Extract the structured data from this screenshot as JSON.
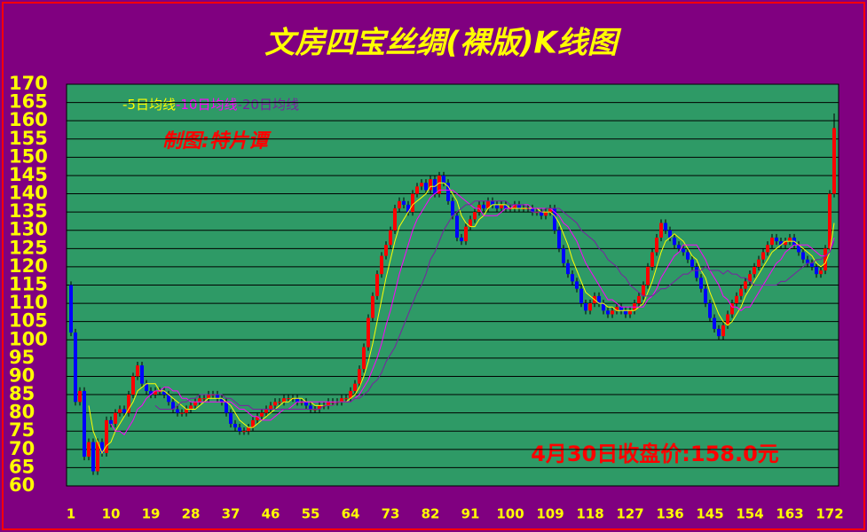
{
  "chart_data": {
    "type": "candlestick",
    "title": "文房四宝丝绸(裸版)K线图",
    "annotations": [
      "制图:特片谭",
      "4月30日收盘价:158.0元"
    ],
    "up_color": "#ff0000",
    "down_color": "#0000ff",
    "x": [
      1,
      2,
      3,
      4,
      5,
      6,
      7,
      8,
      9,
      10,
      11,
      12,
      13,
      14,
      15,
      16,
      17,
      18,
      19,
      20,
      21,
      22,
      23,
      24,
      25,
      26,
      27,
      28,
      29,
      30,
      31,
      32,
      33,
      34,
      35,
      36,
      37,
      38,
      39,
      40,
      41,
      42,
      43,
      44,
      45,
      46,
      47,
      48,
      49,
      50,
      51,
      52,
      53,
      54,
      55,
      56,
      57,
      58,
      59,
      60,
      61,
      62,
      63,
      64,
      65,
      66,
      67,
      68,
      69,
      70,
      71,
      72,
      73,
      74,
      75,
      76,
      77,
      78,
      79,
      80,
      81,
      82,
      83,
      84,
      85,
      86,
      87,
      88,
      89,
      90,
      91,
      92,
      93,
      94,
      95,
      96,
      97,
      98,
      99,
      100,
      101,
      102,
      103,
      104,
      105,
      106,
      107,
      108,
      109,
      110,
      111,
      112,
      113,
      114,
      115,
      116,
      117,
      118,
      119,
      120,
      121,
      122,
      123,
      124,
      125,
      126,
      127,
      128,
      129,
      130,
      131,
      132,
      133,
      134,
      135,
      136,
      137,
      138,
      139,
      140,
      141,
      142,
      143,
      144,
      145,
      146,
      147,
      148,
      149,
      150,
      151,
      152,
      153,
      154,
      155,
      156,
      157,
      158,
      159,
      160,
      161,
      162,
      163,
      164,
      165,
      166,
      167,
      168,
      169,
      170,
      171,
      172,
      173
    ],
    "open": [
      115,
      102,
      83,
      86,
      68,
      72,
      64,
      72,
      69,
      78,
      77,
      80,
      81,
      80,
      85,
      90,
      93,
      88,
      86,
      85,
      86,
      86,
      85,
      83,
      81,
      80,
      80,
      81,
      82,
      83,
      84,
      84,
      85,
      85,
      84,
      83,
      80,
      77,
      76,
      75,
      75,
      76,
      78,
      79,
      80,
      81,
      82,
      83,
      83,
      84,
      84,
      84,
      83,
      83,
      82,
      81,
      81,
      82,
      82,
      83,
      83,
      83,
      84,
      84,
      86,
      88,
      92,
      98,
      106,
      112,
      118,
      123,
      126,
      130,
      136,
      138,
      137,
      135,
      140,
      142,
      143,
      141,
      144,
      140,
      145,
      143,
      138,
      134,
      128,
      127,
      131,
      133,
      135,
      137,
      136,
      138,
      137,
      136,
      137,
      136,
      136,
      137,
      136,
      136,
      136,
      135,
      135,
      134,
      135,
      136,
      130,
      125,
      121,
      118,
      116,
      114,
      110,
      108,
      110,
      112,
      110,
      108,
      107,
      108,
      109,
      108,
      107,
      108,
      110,
      112,
      115,
      120,
      124,
      128,
      132,
      130,
      128,
      126,
      125,
      124,
      122,
      120,
      117,
      114,
      110,
      106,
      103,
      101,
      104,
      107,
      110,
      112,
      114,
      116,
      118,
      120,
      122,
      124,
      126,
      128,
      127,
      126,
      127,
      128,
      126,
      124,
      122,
      121,
      120,
      118,
      119,
      125,
      140
    ],
    "high": [
      116,
      103,
      87,
      87,
      73,
      73,
      73,
      73,
      79,
      79,
      81,
      82,
      82,
      86,
      91,
      94,
      94,
      89,
      87,
      87,
      87,
      87,
      86,
      84,
      82,
      81,
      82,
      83,
      84,
      85,
      85,
      86,
      86,
      86,
      85,
      84,
      81,
      78,
      77,
      76,
      77,
      79,
      80,
      81,
      82,
      83,
      84,
      84,
      85,
      85,
      85,
      85,
      84,
      84,
      83,
      82,
      83,
      83,
      84,
      84,
      84,
      85,
      85,
      87,
      89,
      93,
      99,
      107,
      113,
      119,
      124,
      127,
      131,
      137,
      139,
      139,
      138,
      141,
      143,
      144,
      144,
      145,
      145,
      146,
      146,
      144,
      139,
      135,
      129,
      132,
      134,
      136,
      138,
      138,
      139,
      139,
      138,
      138,
      138,
      137,
      138,
      138,
      137,
      137,
      137,
      136,
      136,
      136,
      137,
      137,
      131,
      126,
      122,
      119,
      117,
      115,
      111,
      111,
      113,
      113,
      111,
      109,
      109,
      110,
      110,
      109,
      109,
      111,
      113,
      116,
      121,
      125,
      129,
      133,
      133,
      131,
      129,
      127,
      126,
      125,
      123,
      121,
      118,
      115,
      111,
      107,
      104,
      105,
      108,
      111,
      113,
      115,
      117,
      119,
      121,
      123,
      125,
      127,
      129,
      129,
      128,
      128,
      129,
      129,
      127,
      125,
      123,
      122,
      121,
      120,
      126,
      141,
      162
    ],
    "low": [
      101,
      82,
      82,
      67,
      67,
      63,
      63,
      68,
      68,
      76,
      76,
      79,
      79,
      79,
      84,
      89,
      87,
      85,
      84,
      84,
      85,
      84,
      82,
      80,
      79,
      79,
      79,
      80,
      81,
      82,
      83,
      83,
      84,
      83,
      82,
      79,
      76,
      75,
      74,
      74,
      74,
      75,
      77,
      78,
      79,
      80,
      81,
      82,
      82,
      83,
      83,
      82,
      82,
      81,
      80,
      80,
      80,
      81,
      81,
      82,
      82,
      82,
      83,
      83,
      85,
      87,
      91,
      97,
      105,
      111,
      117,
      122,
      125,
      129,
      135,
      136,
      134,
      134,
      139,
      141,
      140,
      140,
      139,
      139,
      142,
      137,
      133,
      127,
      126,
      126,
      130,
      132,
      134,
      135,
      135,
      136,
      135,
      135,
      135,
      135,
      135,
      135,
      135,
      135,
      134,
      134,
      133,
      133,
      134,
      129,
      124,
      120,
      117,
      115,
      113,
      109,
      107,
      107,
      109,
      109,
      107,
      106,
      106,
      107,
      107,
      106,
      106,
      107,
      109,
      111,
      114,
      119,
      123,
      127,
      129,
      127,
      125,
      124,
      123,
      121,
      119,
      116,
      113,
      109,
      105,
      102,
      100,
      100,
      103,
      106,
      109,
      111,
      113,
      115,
      117,
      119,
      121,
      123,
      125,
      126,
      125,
      125,
      126,
      125,
      123,
      121,
      120,
      119,
      117,
      117,
      118,
      124,
      139
    ],
    "close": [
      102,
      83,
      86,
      68,
      72,
      64,
      72,
      69,
      78,
      77,
      80,
      81,
      80,
      85,
      90,
      93,
      88,
      86,
      85,
      86,
      86,
      85,
      83,
      81,
      80,
      80,
      81,
      82,
      83,
      84,
      84,
      85,
      85,
      84,
      83,
      80,
      77,
      76,
      75,
      75,
      76,
      78,
      79,
      80,
      81,
      82,
      83,
      83,
      84,
      84,
      84,
      83,
      83,
      82,
      81,
      81,
      82,
      82,
      83,
      83,
      83,
      84,
      84,
      86,
      88,
      92,
      98,
      106,
      112,
      118,
      123,
      126,
      130,
      136,
      138,
      137,
      135,
      140,
      142,
      143,
      141,
      144,
      140,
      145,
      143,
      138,
      134,
      128,
      127,
      131,
      133,
      135,
      137,
      136,
      138,
      137,
      136,
      137,
      136,
      136,
      137,
      136,
      136,
      136,
      135,
      135,
      134,
      135,
      136,
      130,
      125,
      121,
      118,
      116,
      114,
      110,
      108,
      110,
      112,
      110,
      108,
      107,
      108,
      109,
      108,
      107,
      108,
      110,
      112,
      115,
      120,
      124,
      128,
      132,
      130,
      128,
      126,
      125,
      124,
      122,
      120,
      117,
      114,
      110,
      106,
      103,
      101,
      104,
      107,
      110,
      112,
      114,
      116,
      118,
      120,
      122,
      124,
      126,
      128,
      127,
      126,
      127,
      128,
      126,
      124,
      122,
      121,
      120,
      118,
      119,
      125,
      140,
      158
    ],
    "series": [
      {
        "name": "-5日均线",
        "color": "#ffff00",
        "values": [
          null,
          null,
          null,
          null,
          82,
          75,
          72,
          69,
          71,
          72,
          75,
          77,
          79,
          81,
          83,
          86,
          87,
          88,
          88,
          88,
          86,
          86,
          85,
          84,
          83,
          82,
          81,
          81,
          81,
          82,
          83,
          84,
          84,
          84,
          84,
          83,
          82,
          80,
          78,
          77,
          76,
          76,
          77,
          78,
          79,
          80,
          81,
          82,
          83,
          83,
          84,
          84,
          84,
          83,
          83,
          82,
          82,
          82,
          82,
          82,
          83,
          83,
          83,
          84,
          85,
          87,
          90,
          94,
          99,
          105,
          111,
          117,
          122,
          127,
          131,
          133,
          135,
          137,
          138,
          139,
          140,
          142,
          142,
          143,
          143,
          142,
          140,
          138,
          134,
          132,
          131,
          131,
          133,
          134,
          136,
          137,
          137,
          137,
          137,
          136,
          136,
          136,
          136,
          136,
          136,
          136,
          135,
          135,
          135,
          134,
          132,
          129,
          126,
          122,
          119,
          116,
          113,
          112,
          111,
          110,
          110,
          109,
          109,
          108,
          108,
          108,
          108,
          108,
          109,
          110,
          113,
          116,
          120,
          124,
          127,
          128,
          129,
          128,
          127,
          125,
          123,
          122,
          119,
          117,
          113,
          110,
          107,
          105,
          104,
          105,
          107,
          109,
          112,
          114,
          116,
          118,
          120,
          122,
          124,
          125,
          126,
          127,
          127,
          127,
          126,
          125,
          124,
          123,
          121,
          120,
          121,
          124,
          132
        ]
      },
      {
        "name": "-10日均线",
        "color": "#ff00ff",
        "values": [
          null,
          null,
          null,
          null,
          null,
          null,
          null,
          null,
          null,
          77,
          75,
          75,
          74,
          76,
          78,
          81,
          82,
          84,
          85,
          86,
          86,
          87,
          87,
          86,
          86,
          84,
          84,
          83,
          83,
          83,
          83,
          83,
          83,
          83,
          83,
          83,
          83,
          82,
          81,
          81,
          80,
          79,
          79,
          78,
          78,
          78,
          79,
          80,
          81,
          81,
          82,
          83,
          83,
          83,
          83,
          83,
          83,
          83,
          83,
          83,
          83,
          83,
          83,
          83,
          84,
          85,
          87,
          89,
          92,
          95,
          99,
          104,
          108,
          113,
          118,
          122,
          126,
          130,
          133,
          135,
          137,
          139,
          140,
          141,
          141,
          141,
          141,
          140,
          139,
          138,
          137,
          136,
          136,
          134,
          134,
          134,
          134,
          135,
          136,
          136,
          137,
          137,
          137,
          137,
          136,
          136,
          136,
          136,
          136,
          135,
          134,
          132,
          131,
          129,
          127,
          124,
          121,
          119,
          117,
          115,
          113,
          111,
          111,
          110,
          109,
          109,
          109,
          109,
          109,
          109,
          111,
          112,
          114,
          117,
          119,
          121,
          123,
          124,
          126,
          126,
          126,
          126,
          124,
          122,
          119,
          117,
          115,
          112,
          111,
          109,
          109,
          108,
          109,
          109,
          111,
          113,
          115,
          117,
          119,
          121,
          122,
          124,
          125,
          126,
          126,
          126,
          126,
          125,
          124,
          123,
          123,
          124,
          128
        ]
      },
      {
        "name": "-20日均线",
        "color": "#7a1fa2",
        "values": [
          null,
          null,
          null,
          null,
          null,
          null,
          null,
          null,
          null,
          null,
          null,
          null,
          null,
          null,
          null,
          null,
          null,
          null,
          null,
          82,
          81,
          81,
          81,
          81,
          82,
          83,
          83,
          84,
          84,
          85,
          85,
          85,
          85,
          85,
          85,
          84,
          84,
          83,
          82,
          82,
          82,
          81,
          81,
          81,
          81,
          81,
          81,
          81,
          81,
          81,
          81,
          81,
          81,
          81,
          81,
          81,
          81,
          82,
          82,
          82,
          83,
          83,
          83,
          83,
          84,
          84,
          85,
          86,
          88,
          89,
          91,
          94,
          96,
          98,
          101,
          104,
          107,
          110,
          113,
          115,
          118,
          122,
          124,
          127,
          130,
          132,
          134,
          135,
          136,
          137,
          137,
          138,
          138,
          138,
          138,
          138,
          138,
          138,
          138,
          137,
          137,
          137,
          137,
          136,
          135,
          135,
          135,
          136,
          136,
          136,
          136,
          135,
          134,
          133,
          132,
          130,
          129,
          128,
          127,
          125,
          124,
          122,
          121,
          120,
          118,
          117,
          115,
          114,
          113,
          112,
          112,
          112,
          113,
          114,
          114,
          115,
          116,
          117,
          118,
          118,
          119,
          119,
          119,
          120,
          119,
          119,
          119,
          118,
          119,
          118,
          118,
          117,
          117,
          116,
          115,
          115,
          115,
          115,
          115,
          115,
          116,
          116,
          117,
          118,
          119,
          120,
          121,
          121,
          122,
          122,
          123,
          124,
          127
        ]
      }
    ],
    "xlim": [
      0,
      174
    ],
    "xticks": [
      1,
      10,
      19,
      28,
      37,
      46,
      55,
      64,
      73,
      82,
      91,
      100,
      109,
      118,
      127,
      136,
      145,
      154,
      163,
      172
    ],
    "ylim": [
      60,
      170
    ],
    "yticks": [
      60,
      65,
      70,
      75,
      80,
      85,
      90,
      95,
      100,
      105,
      110,
      115,
      120,
      125,
      130,
      135,
      140,
      145,
      150,
      155,
      160,
      165,
      170
    ],
    "grid": true
  }
}
